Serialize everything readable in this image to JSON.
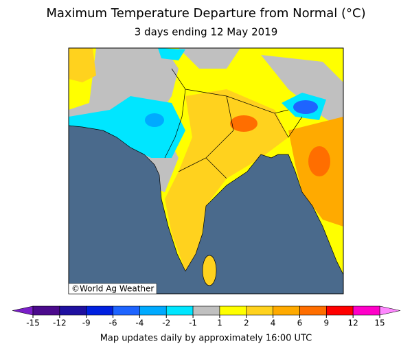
{
  "title": "Maximum Temperature Departure from Normal (°C)",
  "subtitle": "3 days ending 12 May 2019",
  "credit": "©World Ag Weather",
  "footer": "Map updates daily by approximately 16:00 UTC",
  "colorbar": {
    "ticks": [
      -15,
      -12,
      -9,
      -6,
      -4,
      -2,
      -1,
      1,
      2,
      4,
      6,
      9,
      12,
      15
    ],
    "under_color": "#7a1fc8",
    "colors": [
      "#4b0a8c",
      "#1f10a0",
      "#0020e0",
      "#1e64ff",
      "#00aaff",
      "#00e6ff",
      "#c0c0c0",
      "#ffff00",
      "#ffd21e",
      "#ffaa00",
      "#ff6e00",
      "#ff0000",
      "#ff00c8"
    ],
    "over_color": "#ff88ff"
  }
}
